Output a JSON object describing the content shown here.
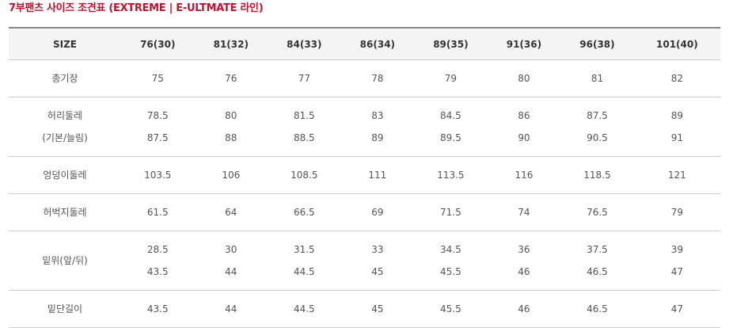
{
  "title": "7부팬츠 사이즈 조견표 (EXTREME | E-ULTMATE 라인)",
  "header": [
    "SIZE",
    "76(30)",
    "81(32)",
    "84(33)",
    "86(34)",
    "89(35)",
    "91(36)",
    "96(38)",
    "101(40)"
  ],
  "rows": [
    {
      "label": [
        "총기장"
      ],
      "values": [
        [
          "75"
        ],
        [
          "76"
        ],
        [
          "77"
        ],
        [
          "78"
        ],
        [
          "79"
        ],
        [
          "80"
        ],
        [
          "81"
        ],
        [
          "82"
        ]
      ]
    },
    {
      "label": [
        "허리둘레",
        "(기본/늘림)"
      ],
      "values": [
        [
          "78.5",
          "87.5"
        ],
        [
          "80",
          "88"
        ],
        [
          "81.5",
          "88.5"
        ],
        [
          "83",
          "89"
        ],
        [
          "84.5",
          "89.5"
        ],
        [
          "86",
          "90"
        ],
        [
          "87.5",
          "90.5"
        ],
        [
          "89",
          "91"
        ]
      ]
    },
    {
      "label": [
        "엉덩이둘레"
      ],
      "values": [
        [
          "103.5"
        ],
        [
          "106"
        ],
        [
          "108.5"
        ],
        [
          "111"
        ],
        [
          "113.5"
        ],
        [
          "116"
        ],
        [
          "118.5"
        ],
        [
          "121"
        ]
      ]
    },
    {
      "label": [
        "허벅지둘레"
      ],
      "values": [
        [
          "61.5"
        ],
        [
          "64"
        ],
        [
          "66.5"
        ],
        [
          "69"
        ],
        [
          "71.5"
        ],
        [
          "74"
        ],
        [
          "76.5"
        ],
        [
          "79"
        ]
      ]
    },
    {
      "label": [
        "밑위(앞/뒤)"
      ],
      "values": [
        [
          "28.5",
          "43.5"
        ],
        [
          "30",
          "44"
        ],
        [
          "31.5",
          "44.5"
        ],
        [
          "33",
          "45"
        ],
        [
          "34.5",
          "45.5"
        ],
        [
          "36",
          "46"
        ],
        [
          "37.5",
          "46.5"
        ],
        [
          "39",
          "47"
        ]
      ]
    },
    {
      "label": [
        "밑단길이"
      ],
      "values": [
        [
          "43.5"
        ],
        [
          "44"
        ],
        [
          "44.5"
        ],
        [
          "45"
        ],
        [
          "45.5"
        ],
        [
          "46"
        ],
        [
          "46.5"
        ],
        [
          "47"
        ]
      ]
    }
  ]
}
